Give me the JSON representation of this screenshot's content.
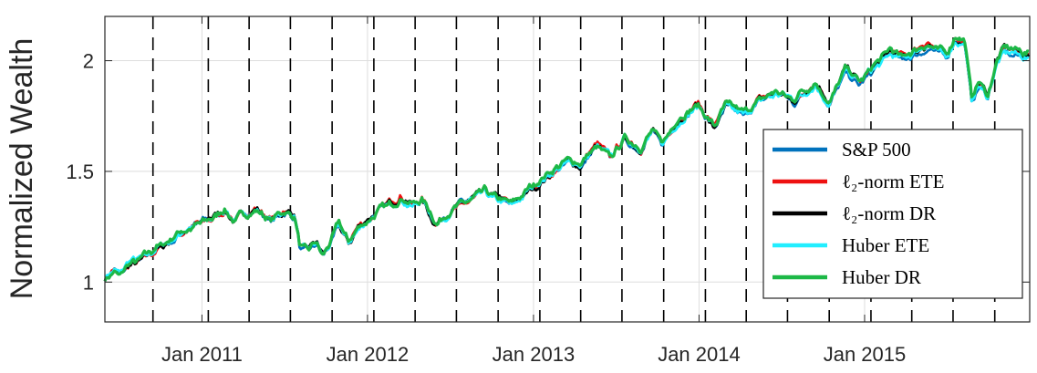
{
  "chart_data": {
    "type": "line",
    "title": "",
    "xlabel": "",
    "ylabel": "Normalized Wealth",
    "xlim": [
      "2010-06-01",
      "2015-12-31"
    ],
    "ylim": [
      0.82,
      2.2
    ],
    "grid": true,
    "legend_position": "lower-right",
    "x_ticks": [
      {
        "date": "2011-01-01",
        "label": "Jan 2011"
      },
      {
        "date": "2012-01-01",
        "label": "Jan 2012"
      },
      {
        "date": "2013-01-01",
        "label": "Jan 2013"
      },
      {
        "date": "2014-01-01",
        "label": "Jan 2014"
      },
      {
        "date": "2015-01-01",
        "label": "Jan 2015"
      }
    ],
    "y_ticks": [
      {
        "value": 1,
        "label": "1"
      },
      {
        "value": 1.5,
        "label": "1.5"
      },
      {
        "value": 2,
        "label": "2"
      }
    ],
    "rebalance_dates": [
      "2010-09-15",
      "2011-01-15",
      "2011-04-15",
      "2011-07-15",
      "2011-10-15",
      "2012-01-15",
      "2012-04-15",
      "2012-07-15",
      "2012-10-15",
      "2013-01-15",
      "2013-04-15",
      "2013-07-15",
      "2013-10-15",
      "2014-01-15",
      "2014-04-15",
      "2014-07-15",
      "2014-10-15",
      "2015-01-15",
      "2015-04-15",
      "2015-07-15",
      "2015-10-15"
    ],
    "base_path": [
      [
        "2010-06-01",
        1.02
      ],
      [
        "2010-06-20",
        1.06
      ],
      [
        "2010-07-05",
        1.03
      ],
      [
        "2010-07-25",
        1.08
      ],
      [
        "2010-08-15",
        1.09
      ],
      [
        "2010-09-05",
        1.12
      ],
      [
        "2010-10-01",
        1.16
      ],
      [
        "2010-11-01",
        1.2
      ],
      [
        "2010-12-01",
        1.24
      ],
      [
        "2011-01-01",
        1.27
      ],
      [
        "2011-02-01",
        1.3
      ],
      [
        "2011-02-20",
        1.33
      ],
      [
        "2011-03-15",
        1.28
      ],
      [
        "2011-04-01",
        1.31
      ],
      [
        "2011-05-01",
        1.33
      ],
      [
        "2011-06-01",
        1.28
      ],
      [
        "2011-07-01",
        1.32
      ],
      [
        "2011-07-25",
        1.3
      ],
      [
        "2011-08-05",
        1.16
      ],
      [
        "2011-08-20",
        1.14
      ],
      [
        "2011-09-10",
        1.18
      ],
      [
        "2011-09-25",
        1.12
      ],
      [
        "2011-10-10",
        1.17
      ],
      [
        "2011-10-30",
        1.26
      ],
      [
        "2011-11-20",
        1.18
      ],
      [
        "2011-12-10",
        1.24
      ],
      [
        "2012-01-01",
        1.28
      ],
      [
        "2012-02-01",
        1.33
      ],
      [
        "2012-03-15",
        1.38
      ],
      [
        "2012-04-10",
        1.35
      ],
      [
        "2012-05-01",
        1.37
      ],
      [
        "2012-06-01",
        1.26
      ],
      [
        "2012-07-01",
        1.32
      ],
      [
        "2012-08-15",
        1.37
      ],
      [
        "2012-09-15",
        1.41
      ],
      [
        "2012-10-15",
        1.38
      ],
      [
        "2012-11-15",
        1.35
      ],
      [
        "2012-12-15",
        1.4
      ],
      [
        "2013-01-15",
        1.45
      ],
      [
        "2013-02-15",
        1.5
      ],
      [
        "2013-03-15",
        1.54
      ],
      [
        "2013-04-15",
        1.53
      ],
      [
        "2013-05-20",
        1.62
      ],
      [
        "2013-06-20",
        1.56
      ],
      [
        "2013-07-20",
        1.65
      ],
      [
        "2013-08-25",
        1.6
      ],
      [
        "2013-09-20",
        1.68
      ],
      [
        "2013-10-10",
        1.62
      ],
      [
        "2013-11-20",
        1.74
      ],
      [
        "2013-12-31",
        1.8
      ],
      [
        "2014-02-03",
        1.7
      ],
      [
        "2014-03-01",
        1.8
      ],
      [
        "2014-04-10",
        1.76
      ],
      [
        "2014-05-15",
        1.82
      ],
      [
        "2014-06-20",
        1.86
      ],
      [
        "2014-07-31",
        1.82
      ],
      [
        "2014-09-15",
        1.9
      ],
      [
        "2014-10-15",
        1.8
      ],
      [
        "2014-11-20",
        1.96
      ],
      [
        "2014-12-20",
        1.9
      ],
      [
        "2015-01-15",
        1.95
      ],
      [
        "2015-02-25",
        2.04
      ],
      [
        "2015-03-25",
        2.01
      ],
      [
        "2015-05-20",
        2.07
      ],
      [
        "2015-06-30",
        2.02
      ],
      [
        "2015-07-20",
        2.1
      ],
      [
        "2015-08-10",
        2.08
      ],
      [
        "2015-08-25",
        1.82
      ],
      [
        "2015-09-10",
        1.9
      ],
      [
        "2015-09-30",
        1.84
      ],
      [
        "2015-10-20",
        2.0
      ],
      [
        "2015-11-05",
        2.05
      ],
      [
        "2015-12-01",
        2.04
      ],
      [
        "2015-12-31",
        2.02
      ]
    ],
    "series": [
      {
        "name": "S&P 500",
        "color": "#0072BD",
        "offset": -0.01
      },
      {
        "name": "ℓ₂-norm ETE",
        "color": "#EE1111",
        "offset": 0.005
      },
      {
        "name": "ℓ₂-norm DR",
        "color": "#000000",
        "offset": 0.0
      },
      {
        "name": "Huber ETE",
        "color": "#22EEFF",
        "offset": -0.005
      },
      {
        "name": "Huber DR",
        "color": "#1DB847",
        "offset": 0.01
      }
    ]
  }
}
